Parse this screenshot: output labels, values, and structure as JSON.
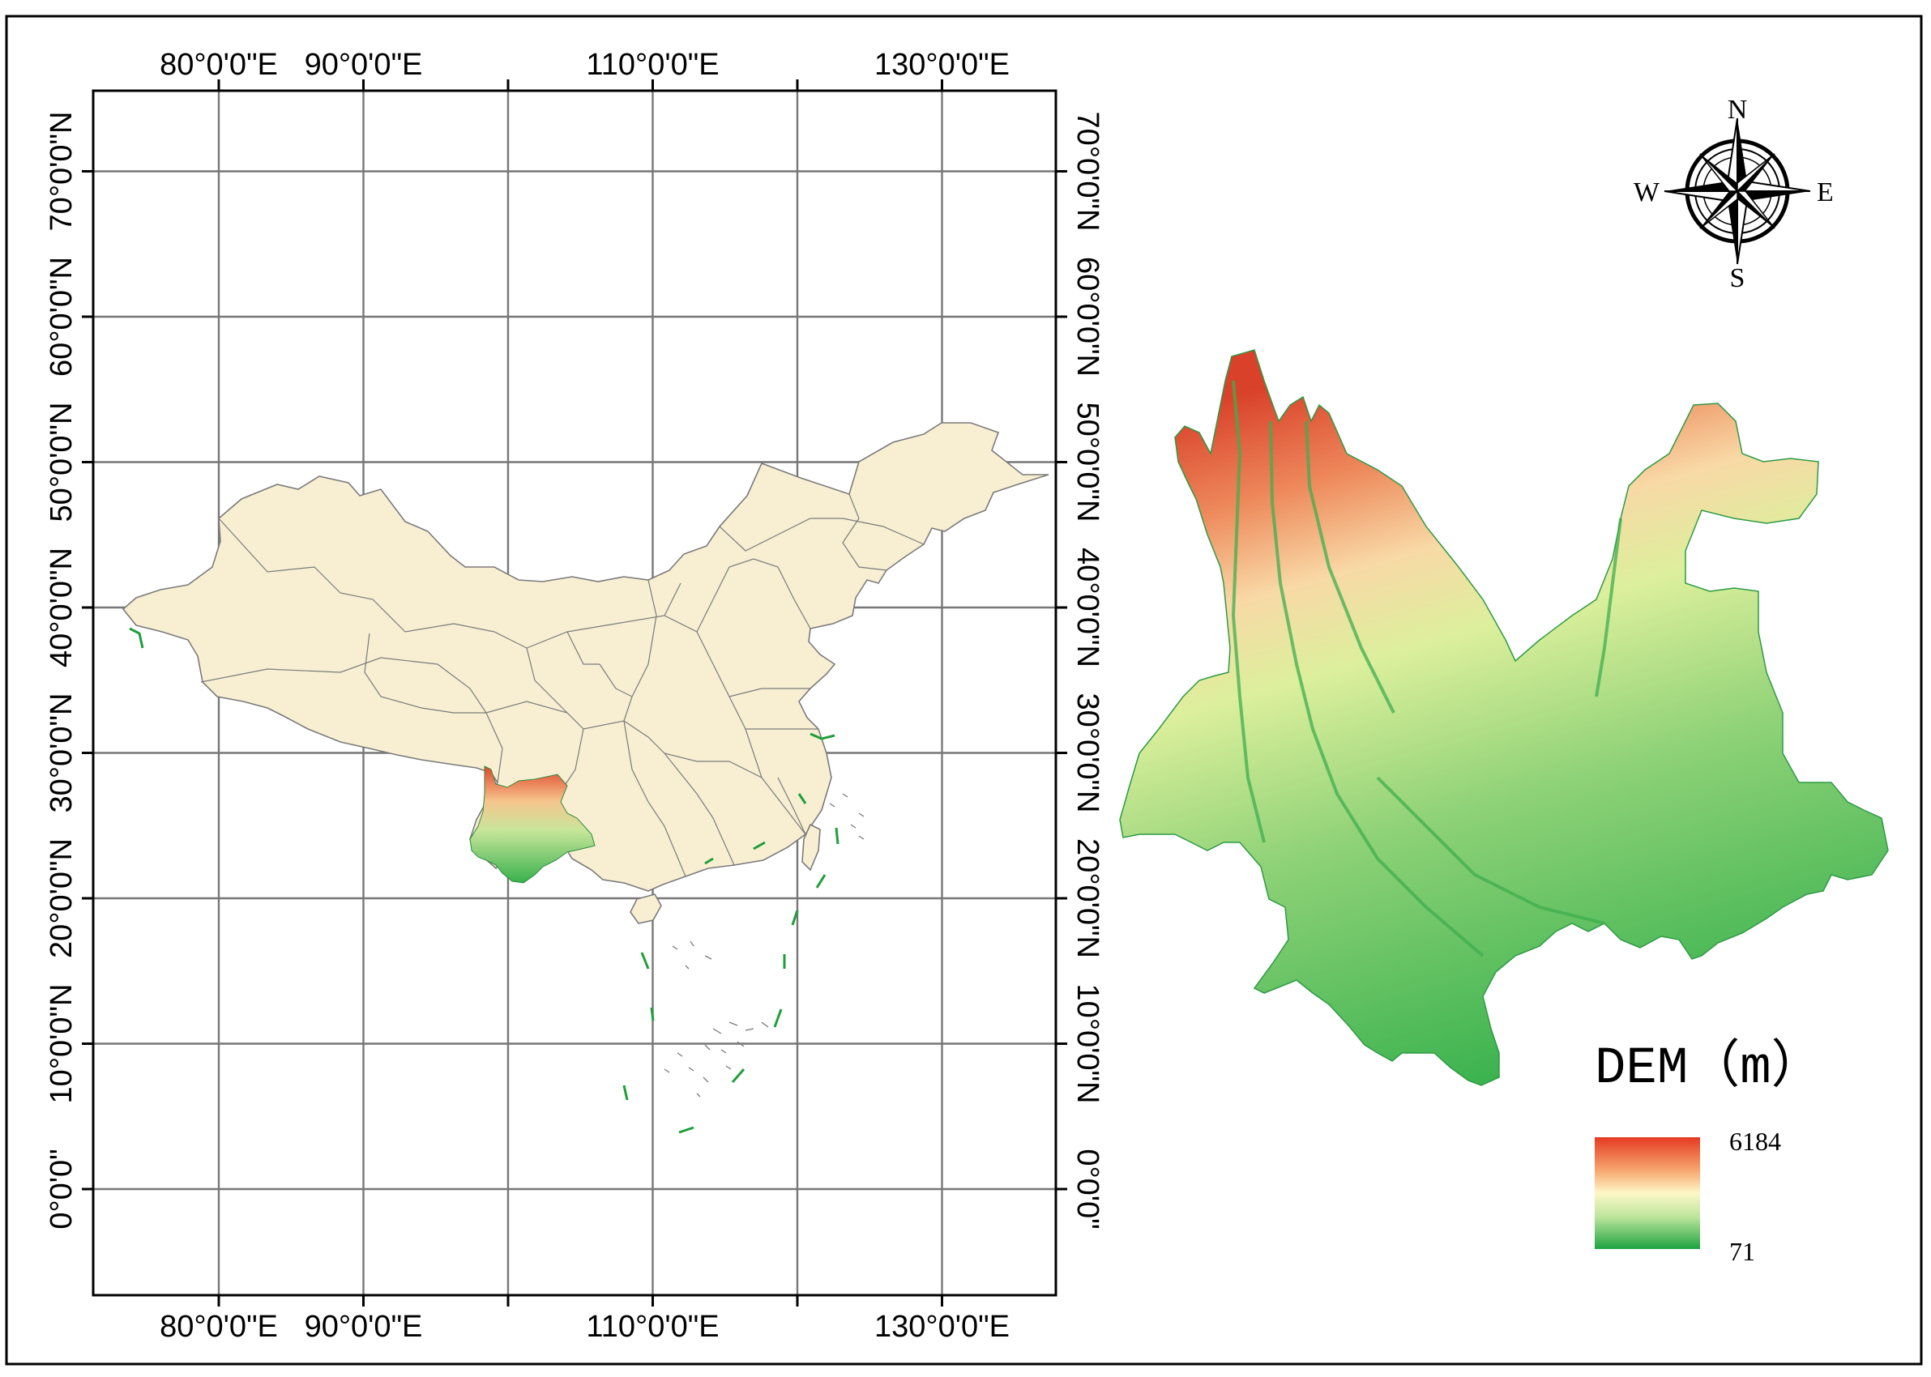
{
  "map": {
    "lon_labels": [
      {
        "lon": 80,
        "text": "80°0'0\"E"
      },
      {
        "lon": 90,
        "text": "90°0'0\"E"
      },
      {
        "lon": 110,
        "text": "110°0'0\"E"
      },
      {
        "lon": 130,
        "text": "130°0'0\"E"
      }
    ],
    "lat_labels": [
      {
        "lat": 70,
        "text": "70°0'0\"N"
      },
      {
        "lat": 60,
        "text": "60°0'0\"N"
      },
      {
        "lat": 50,
        "text": "50°0'0\"N"
      },
      {
        "lat": 40,
        "text": "40°0'0\"N"
      },
      {
        "lat": 30,
        "text": "30°0'0\"N"
      },
      {
        "lat": 20,
        "text": "20°0'0\"N"
      },
      {
        "lat": 10,
        "text": "10°0'0\"N"
      },
      {
        "lat": 0,
        "text": "0°0'0\""
      }
    ],
    "lon_ticks": [
      80,
      90,
      100,
      110,
      120,
      130
    ],
    "lat_ticks": [
      0,
      10,
      20,
      30,
      40,
      50,
      60,
      70
    ],
    "land_color": "#f8efd3",
    "border_color": "#7a7a7a"
  },
  "compass": {
    "n": "N",
    "s": "S",
    "e": "E",
    "w": "W"
  },
  "legend": {
    "title": "DEM（m）",
    "max_label": "6184",
    "min_label": "71",
    "gradient": [
      "#e53a22",
      "#f7b77a",
      "#fdf7c7",
      "#b9e49a",
      "#1da340"
    ]
  }
}
